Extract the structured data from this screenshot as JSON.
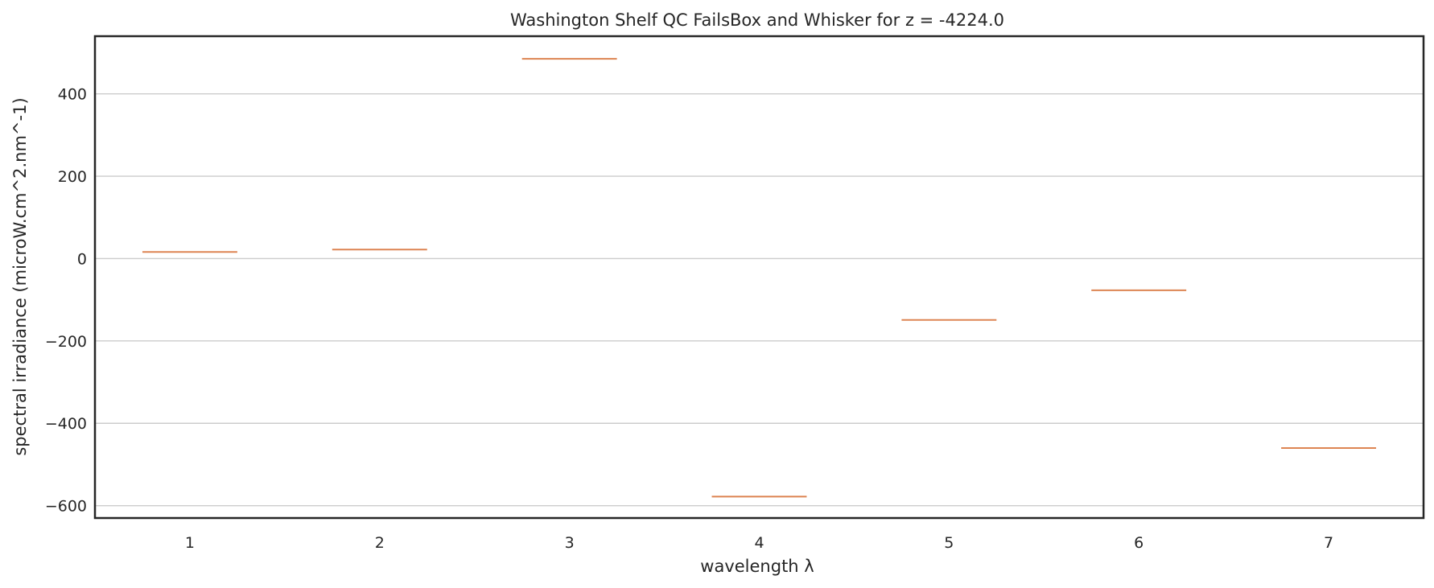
{
  "chart_data": {
    "type": "box",
    "title": "Washington Shelf QC FailsBox and Whisker for z = -4224.0",
    "xlabel": "wavelength λ",
    "ylabel": "spectral irradiance (microW.cm^2.nm^-1)",
    "categories": [
      "1",
      "2",
      "3",
      "4",
      "5",
      "6",
      "7"
    ],
    "values": [
      16,
      22,
      485,
      -578,
      -149,
      -77,
      -460
    ],
    "y_ticks": [
      400,
      200,
      0,
      -200,
      -400,
      -600
    ],
    "y_tick_labels": [
      "400",
      "200",
      "0",
      "−200",
      "−400",
      "−600"
    ],
    "ylim": [
      -630,
      540
    ],
    "grid": "horizontal",
    "line_color": "#dd8452"
  }
}
